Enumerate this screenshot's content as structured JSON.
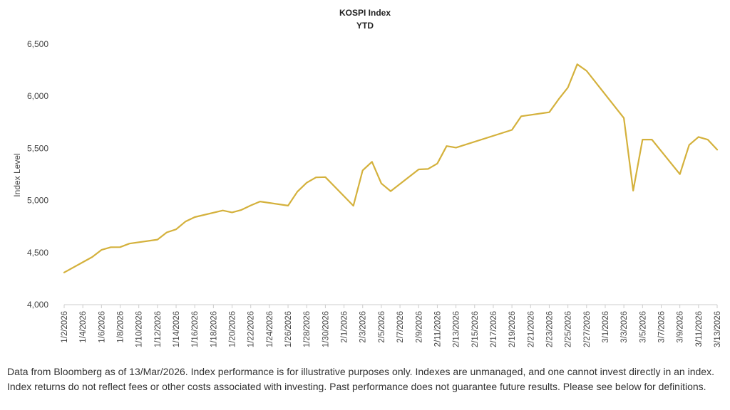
{
  "chart_data": {
    "type": "line",
    "title": "KOSPI Index",
    "subtitle": "YTD",
    "xlabel": "",
    "ylabel": "Index Level",
    "ylim": [
      4000,
      6500
    ],
    "yticks": [
      "4,000",
      "4,500",
      "5,000",
      "5,500",
      "6,000",
      "6,500"
    ],
    "xrange": [
      "1/2/2026",
      "3/13/2026"
    ],
    "xticks": [
      "1/2/2026",
      "1/4/2026",
      "1/6/2026",
      "1/8/2026",
      "1/10/2026",
      "1/12/2026",
      "1/14/2026",
      "1/16/2026",
      "1/18/2026",
      "1/20/2026",
      "1/22/2026",
      "1/24/2026",
      "1/26/2026",
      "1/28/2026",
      "1/30/2026",
      "2/1/2026",
      "2/3/2026",
      "2/5/2026",
      "2/7/2026",
      "2/9/2026",
      "2/11/2026",
      "2/13/2026",
      "2/15/2026",
      "2/17/2026",
      "2/19/2026",
      "2/21/2026",
      "2/23/2026",
      "2/25/2026",
      "2/27/2026",
      "3/1/2026",
      "3/3/2026",
      "3/5/2026",
      "3/7/2026",
      "3/9/2026",
      "3/11/2026",
      "3/13/2026"
    ],
    "grid": false,
    "color": "#D4B13C",
    "series": [
      {
        "x": [
          "1/2/2026",
          "1/5/2026",
          "1/6/2026",
          "1/7/2026",
          "1/8/2026",
          "1/9/2026",
          "1/12/2026",
          "1/13/2026",
          "1/14/2026",
          "1/15/2026",
          "1/16/2026",
          "1/19/2026",
          "1/20/2026",
          "1/21/2026",
          "1/22/2026",
          "1/23/2026",
          "1/26/2026",
          "1/27/2026",
          "1/28/2026",
          "1/29/2026",
          "1/30/2026",
          "2/2/2026",
          "2/3/2026",
          "2/4/2026",
          "2/5/2026",
          "2/6/2026",
          "2/9/2026",
          "2/10/2026",
          "2/11/2026",
          "2/12/2026",
          "2/13/2026",
          "2/19/2026",
          "2/20/2026",
          "2/23/2026",
          "2/24/2026",
          "2/25/2026",
          "2/26/2026",
          "2/27/2026",
          "3/3/2026",
          "3/4/2026",
          "3/5/2026",
          "3/6/2026",
          "3/9/2026",
          "3/10/2026",
          "3/11/2026",
          "3/12/2026",
          "3/13/2026"
        ],
        "values": [
          4309,
          4457,
          4525,
          4551,
          4552,
          4586,
          4624,
          4693,
          4723,
          4797,
          4840,
          4904,
          4885,
          4909,
          4952,
          4990,
          4950,
          5084,
          5170,
          5221,
          5224,
          4949,
          5288,
          5371,
          5163,
          5089,
          5298,
          5302,
          5354,
          5522,
          5507,
          5677,
          5808,
          5846,
          5970,
          6083,
          6307,
          6244,
          5791,
          5094,
          5584,
          5584,
          5252,
          5532,
          5609,
          5583,
          5487
        ]
      }
    ]
  },
  "footnote": "Data from Bloomberg as of 13/Mar/2026. Index performance is for illustrative purposes only. Indexes are unmanaged, and one cannot invest directly in an index. Index returns do not reflect fees or other costs associated with investing. Past performance does not guarantee future results. Please see below for definitions."
}
